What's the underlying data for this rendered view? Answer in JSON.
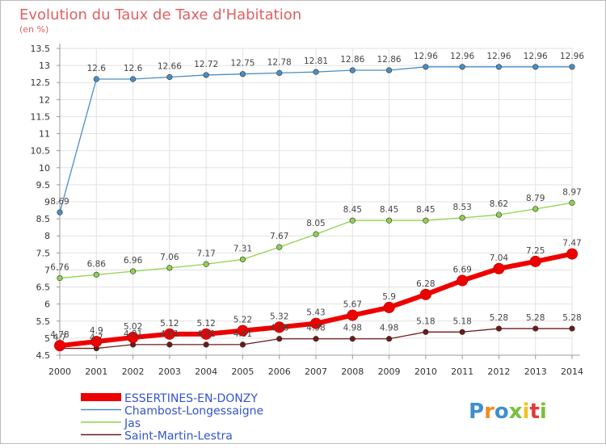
{
  "brand": {
    "text": "Proxiti",
    "colors": [
      "#3f8fcf",
      "#f28c1e",
      "#3f8fcf",
      "#7bbf3a",
      "#f2c21e",
      "#e23b3b",
      "#7bbf3a"
    ]
  },
  "chart_data": {
    "type": "line",
    "title": "Evolution du Taux de Taxe d'Habitation",
    "subtitle": "(en %)",
    "xlabel": "",
    "ylabel": "",
    "x": [
      "2000",
      "2001",
      "2002",
      "2003",
      "2004",
      "2005",
      "2006",
      "2007",
      "2008",
      "2009",
      "2010",
      "2011",
      "2012",
      "2013",
      "2014"
    ],
    "ylim": [
      4.5,
      13.5
    ],
    "yticks": [
      "4.5",
      "5",
      "5.5",
      "6",
      "6.5",
      "7",
      "7.5",
      "8",
      "8.5",
      "9",
      "9.5",
      "10",
      "10.5",
      "11",
      "11.5",
      "12",
      "12.5",
      "13",
      "13.5"
    ],
    "grid": true,
    "legend_position": "bottom-left",
    "series": [
      {
        "name": "Saint-Martin-Lestra",
        "color": "#6b1a1a",
        "values": [
          4.7,
          4.7,
          4.81,
          4.81,
          4.81,
          4.81,
          4.98,
          4.98,
          4.98,
          4.98,
          5.18,
          5.18,
          5.28,
          5.28,
          5.28
        ],
        "labels": [
          "4.7",
          "4.7",
          "4.81",
          "4.81",
          "4.81",
          "4.81",
          "4.98",
          "4.98",
          "4.98",
          "4.98",
          "5.18",
          "5.18",
          "5.28",
          "5.28",
          "5.28"
        ]
      },
      {
        "name": "Jas",
        "color": "#8fd14f",
        "values": [
          6.76,
          6.86,
          6.96,
          7.06,
          7.17,
          7.31,
          7.67,
          8.05,
          8.45,
          8.45,
          8.45,
          8.53,
          8.62,
          8.79,
          8.97
        ],
        "labels": [
          "6.76",
          "6.86",
          "6.96",
          "7.06",
          "7.17",
          "7.31",
          "7.67",
          "8.05",
          "8.45",
          "8.45",
          "8.45",
          "8.53",
          "8.62",
          "8.79",
          "8.97"
        ]
      },
      {
        "name": "Chambost-Longessaigne",
        "color": "#4a8ec4",
        "values": [
          8.69,
          12.6,
          12.6,
          12.66,
          12.72,
          12.75,
          12.78,
          12.81,
          12.86,
          12.86,
          12.96,
          12.96,
          12.96,
          12.96,
          12.96
        ],
        "labels": [
          "8.69",
          "12.6",
          "12.6",
          "12.66",
          "12.72",
          "12.75",
          "12.78",
          "12.81",
          "12.86",
          "12.86",
          "12.96",
          "12.96",
          "12.96",
          "12.96",
          "12.96"
        ]
      },
      {
        "name": "ESSERTINES-EN-DONZY",
        "color": "#ee0000",
        "highlight": true,
        "values": [
          4.78,
          4.9,
          5.02,
          5.12,
          5.12,
          5.22,
          5.32,
          5.43,
          5.67,
          5.9,
          6.28,
          6.69,
          7.04,
          7.25,
          7.47
        ],
        "labels": [
          "4.78",
          "4.9",
          "5.02",
          "5.12",
          "5.12",
          "5.22",
          "5.32",
          "5.43",
          "5.67",
          "5.9",
          "6.28",
          "6.69",
          "7.04",
          "7.25",
          "7.47"
        ]
      }
    ],
    "legend_order": [
      "ESSERTINES-EN-DONZY",
      "Chambost-Longessaigne",
      "Jas",
      "Saint-Martin-Lestra"
    ]
  }
}
